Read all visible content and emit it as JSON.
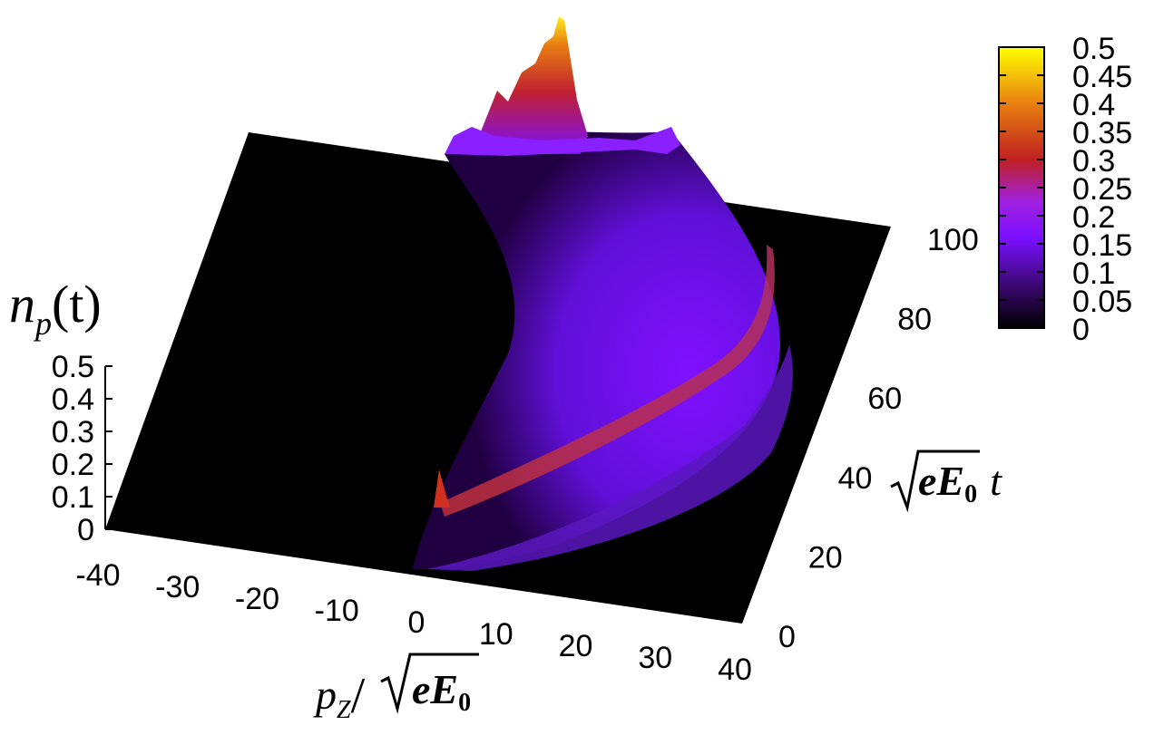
{
  "chart_data": {
    "type": "surface3d",
    "z_axis": {
      "label": {
        "main": "n",
        "sub": "p",
        "rest": "(t)"
      },
      "range": [
        0,
        0.5
      ],
      "ticks": [
        "0",
        "0.1",
        "0.2",
        "0.3",
        "0.4",
        "0.5"
      ]
    },
    "x_axis": {
      "label": {
        "p": "p",
        "sub": "Z",
        "slash": "/",
        "eE": "eE",
        "zero": "0"
      },
      "range": [
        -40,
        40
      ],
      "ticks": [
        "-40",
        "-30",
        "-20",
        "-10",
        "0",
        "10",
        "20",
        "30",
        "40"
      ]
    },
    "y_axis": {
      "label": {
        "eE": "eE",
        "zero": "0",
        "t": "t"
      },
      "range": [
        0,
        100
      ],
      "ticks": [
        "0",
        "20",
        "40",
        "60",
        "80",
        "100"
      ]
    },
    "colorbar": {
      "range": [
        0,
        0.5
      ],
      "ticks": [
        "0",
        "0.05",
        "0.1",
        "0.15",
        "0.2",
        "0.25",
        "0.3",
        "0.35",
        "0.4",
        "0.45",
        "0.5"
      ],
      "colors": [
        "#000000",
        "#3a0870",
        "#7a10ff",
        "#a020e0",
        "#c02020",
        "#e88010",
        "#ffff00"
      ]
    },
    "ridge": {
      "note_values": [
        {
          "t": 0,
          "pz": 0,
          "np": 0.1
        },
        {
          "t": 20,
          "pz": 8,
          "np": 0.2
        },
        {
          "t": 40,
          "pz": 22,
          "np": 0.22
        },
        {
          "t": 60,
          "pz": 32,
          "np": 0.2
        },
        {
          "t": 80,
          "pz": 22,
          "np": 0.15
        },
        {
          "t": 100,
          "pz": 0,
          "np": 0.45
        }
      ]
    }
  }
}
